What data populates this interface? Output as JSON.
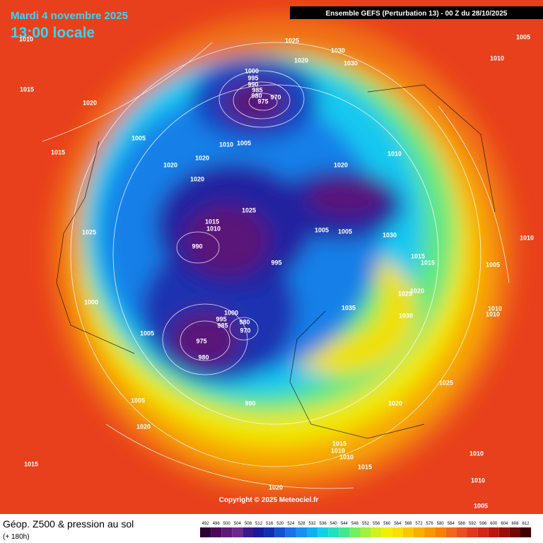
{
  "header": {
    "date": "Mardi 4 novembre 2025",
    "time": "13:00 locale",
    "model": "Ensemble GEFS  (Perturbation 13)  -  00 Z du 28/10/2025"
  },
  "copyright": "Copyright © 2025 Meteociel.fr",
  "footer": {
    "title": "Géop. Z500 & pression au sol",
    "lead": "(+ 180h)"
  },
  "pressure_labels": [
    1025,
    1030,
    1020,
    1030,
    1010,
    1005,
    1010,
    1015,
    1020,
    1000,
    995,
    990,
    985,
    980,
    975,
    970,
    1010,
    1005,
    1005,
    1015,
    1020,
    1020,
    1020,
    1010,
    1020,
    1025,
    1015,
    1010,
    990,
    1005,
    1005,
    1030,
    995,
    1025,
    1010,
    1015,
    1015,
    1005,
    1020,
    1025,
    1035,
    1030,
    1000,
    1000,
    995,
    985,
    980,
    970,
    1005,
    975,
    980,
    1010,
    1010,
    1025,
    1020,
    1005,
    990,
    1020,
    1015,
    1010,
    1010,
    1015,
    1010,
    1015,
    1010,
    1020,
    1005
  ],
  "colorbar": {
    "labels": [
      492,
      496,
      500,
      504,
      508,
      512,
      516,
      520,
      524,
      528,
      532,
      536,
      540,
      544,
      548,
      552,
      556,
      560,
      564,
      568,
      572,
      576,
      580,
      584,
      588,
      592,
      596,
      600,
      604,
      608,
      612
    ],
    "colors": [
      "#2b0033",
      "#4a0a5a",
      "#5e1a78",
      "#6a2a8f",
      "#3a1a8a",
      "#1a1a9a",
      "#1030b0",
      "#1450d0",
      "#1a70e8",
      "#1890f0",
      "#10b0f0",
      "#10d0e8",
      "#20e0c0",
      "#40e890",
      "#70f060",
      "#a0f040",
      "#d0f020",
      "#f0f000",
      "#f8e000",
      "#f8c800",
      "#f8b000",
      "#f89800",
      "#f88000",
      "#f06818",
      "#e85020",
      "#e03820",
      "#d02818",
      "#b81810",
      "#981008",
      "#700800",
      "#400000"
    ]
  }
}
